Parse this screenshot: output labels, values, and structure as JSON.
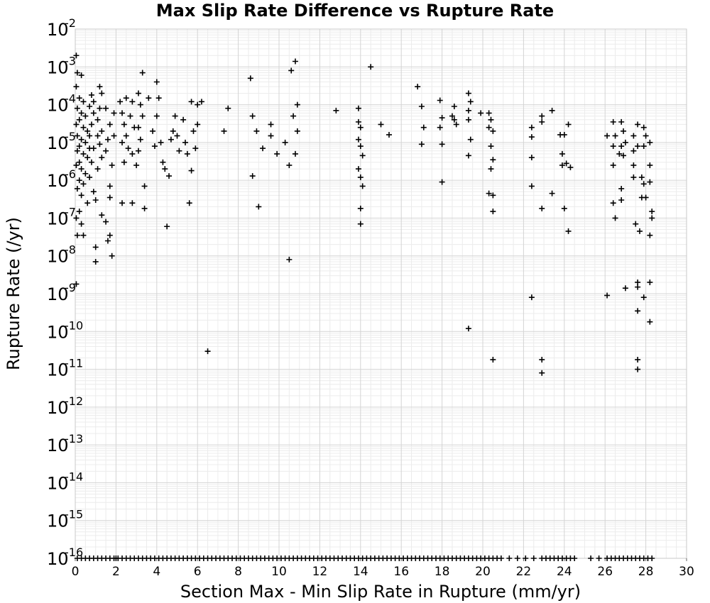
{
  "chart_data": {
    "type": "scatter",
    "title": "Max Slip Rate Difference vs Rupture Rate",
    "xlabel": "Section Max - Min Slip Rate in Rupture (mm/yr)",
    "ylabel": "Rupture Rate (/yr)",
    "xlim": [
      0,
      30
    ],
    "ylim": [
      1e-16,
      0.01
    ],
    "yscale": "log",
    "grid": true,
    "legend": "none",
    "marker": "plus",
    "marker_color": "#000000",
    "x_ticks": [
      "0",
      "2",
      "4",
      "6",
      "8",
      "10",
      "12",
      "14",
      "16",
      "18",
      "20",
      "22",
      "24",
      "26",
      "28",
      "30"
    ],
    "y_ticks": [
      {
        "base": "10",
        "exp": "-2"
      },
      {
        "base": "10",
        "exp": "-3"
      },
      {
        "base": "10",
        "exp": "-4"
      },
      {
        "base": "10",
        "exp": "-5"
      },
      {
        "base": "10",
        "exp": "-6"
      },
      {
        "base": "10",
        "exp": "-7"
      },
      {
        "base": "10",
        "exp": "-8"
      },
      {
        "base": "10",
        "exp": "-9"
      },
      {
        "base": "10",
        "exp": "-10"
      },
      {
        "base": "10",
        "exp": "-11"
      },
      {
        "base": "10",
        "exp": "-12"
      },
      {
        "base": "10",
        "exp": "-13"
      },
      {
        "base": "10",
        "exp": "-14"
      },
      {
        "base": "10",
        "exp": "-15"
      },
      {
        "base": "10",
        "exp": "-16"
      }
    ],
    "points": [
      [
        0.05,
        0.002
      ],
      [
        0.1,
        0.0007
      ],
      [
        0.3,
        0.0006
      ],
      [
        0.05,
        0.0003
      ],
      [
        0.2,
        0.00015
      ],
      [
        0.4,
        0.00012
      ],
      [
        0.1,
        8e-05
      ],
      [
        0.3,
        6e-05
      ],
      [
        0.5,
        5e-05
      ],
      [
        0.2,
        4e-05
      ],
      [
        0.05,
        3e-05
      ],
      [
        0.4,
        2.5e-05
      ],
      [
        0.6,
        2e-05
      ],
      [
        0.1,
        1.5e-05
      ],
      [
        0.3,
        1.2e-05
      ],
      [
        0.5,
        1e-05
      ],
      [
        0.2,
        8e-06
      ],
      [
        0.7,
        7e-06
      ],
      [
        0.1,
        6e-06
      ],
      [
        0.4,
        5e-06
      ],
      [
        0.6,
        4e-06
      ],
      [
        0.2,
        3e-06
      ],
      [
        0.05,
        2.5e-06
      ],
      [
        0.3,
        2e-06
      ],
      [
        0.5,
        1.5e-06
      ],
      [
        0.2,
        1e-06
      ],
      [
        0.4,
        8e-07
      ],
      [
        0.1,
        6e-07
      ],
      [
        0.3,
        4e-07
      ],
      [
        0.6,
        2.5e-07
      ],
      [
        0.2,
        1.5e-07
      ],
      [
        0.05,
        1e-07
      ],
      [
        0.3,
        7e-08
      ],
      [
        0.1,
        3.5e-08
      ],
      [
        0.4,
        3.5e-08
      ],
      [
        0.05,
        1.8e-09
      ],
      [
        0.8,
        0.00018
      ],
      [
        0.9,
        0.00012
      ],
      [
        0.7,
        9e-05
      ],
      [
        0.9,
        6e-05
      ],
      [
        0.8,
        3e-05
      ],
      [
        0.7,
        1.5e-05
      ],
      [
        0.9,
        7e-06
      ],
      [
        0.8,
        3e-06
      ],
      [
        0.7,
        1.2e-06
      ],
      [
        0.9,
        5e-07
      ],
      [
        1.0,
        1.7e-08
      ],
      [
        1.0,
        7e-09
      ],
      [
        1.0,
        3e-07
      ],
      [
        1.1,
        1.5e-05
      ],
      [
        1.2,
        0.0003
      ],
      [
        1.3,
        0.0002
      ],
      [
        1.2,
        8e-05
      ],
      [
        1.1,
        4e-05
      ],
      [
        1.3,
        2e-05
      ],
      [
        1.2,
        9e-06
      ],
      [
        1.3,
        4e-06
      ],
      [
        1.1,
        2e-06
      ],
      [
        1.3,
        1.2e-07
      ],
      [
        1.5,
        8e-08
      ],
      [
        1.6,
        2.5e-08
      ],
      [
        1.7,
        3.5e-08
      ],
      [
        1.8,
        1e-08
      ],
      [
        1.7,
        3.5e-07
      ],
      [
        1.5,
        8e-05
      ],
      [
        1.7,
        3e-05
      ],
      [
        1.6,
        1.2e-05
      ],
      [
        1.5,
        6e-06
      ],
      [
        1.8,
        2.5e-06
      ],
      [
        1.7,
        7e-07
      ],
      [
        1.9,
        1.5e-05
      ],
      [
        1.9,
        6e-05
      ],
      [
        2.2,
        0.00012
      ],
      [
        2.5,
        0.00015
      ],
      [
        2.8,
        0.00012
      ],
      [
        2.3,
        6e-05
      ],
      [
        2.7,
        5e-05
      ],
      [
        2.4,
        3e-05
      ],
      [
        2.9,
        2.5e-05
      ],
      [
        2.5,
        1.5e-05
      ],
      [
        2.3,
        1e-05
      ],
      [
        2.6,
        7e-06
      ],
      [
        2.8,
        5e-06
      ],
      [
        2.4,
        3e-06
      ],
      [
        2.3,
        2.5e-07
      ],
      [
        2.8,
        2.5e-07
      ],
      [
        3.0,
        2.5e-06
      ],
      [
        3.1,
        6e-06
      ],
      [
        3.2,
        1.2e-05
      ],
      [
        3.1,
        2.5e-05
      ],
      [
        3.3,
        5e-05
      ],
      [
        3.2,
        0.0001
      ],
      [
        3.3,
        0.0007
      ],
      [
        3.1,
        0.0002
      ],
      [
        3.4,
        1.8e-07
      ],
      [
        3.4,
        7e-07
      ],
      [
        3.6,
        0.00015
      ],
      [
        3.8,
        2e-05
      ],
      [
        3.9,
        8e-06
      ],
      [
        4.0,
        5e-05
      ],
      [
        4.0,
        0.0004
      ],
      [
        4.1,
        0.00015
      ],
      [
        4.2,
        1e-05
      ],
      [
        4.3,
        3e-06
      ],
      [
        4.4,
        2e-06
      ],
      [
        4.5,
        6e-08
      ],
      [
        4.6,
        1.3e-06
      ],
      [
        4.7,
        1.2e-05
      ],
      [
        4.8,
        2e-05
      ],
      [
        4.9,
        5e-05
      ],
      [
        5.0,
        1.5e-05
      ],
      [
        5.1,
        6e-06
      ],
      [
        5.3,
        4e-05
      ],
      [
        5.4,
        1e-05
      ],
      [
        5.5,
        5e-06
      ],
      [
        5.7,
        1.8e-06
      ],
      [
        5.6,
        2.5e-07
      ],
      [
        5.8,
        2e-05
      ],
      [
        5.9,
        7e-06
      ],
      [
        6.0,
        3e-05
      ],
      [
        6.2,
        0.00012
      ],
      [
        6.5,
        3e-11
      ],
      [
        5.7,
        0.00012
      ],
      [
        6.0,
        0.0001
      ],
      [
        7.3,
        2e-05
      ],
      [
        7.5,
        8e-05
      ],
      [
        8.6,
        0.0005
      ],
      [
        8.7,
        5e-05
      ],
      [
        8.9,
        2e-05
      ],
      [
        8.7,
        1.3e-06
      ],
      [
        9.0,
        2e-07
      ],
      [
        9.2,
        7e-06
      ],
      [
        9.6,
        1.5e-05
      ],
      [
        9.6,
        3e-05
      ],
      [
        9.9,
        5e-06
      ],
      [
        10.3,
        1e-05
      ],
      [
        10.6,
        0.0008
      ],
      [
        10.8,
        0.0014
      ],
      [
        10.9,
        0.0001
      ],
      [
        10.7,
        5e-05
      ],
      [
        10.9,
        2e-05
      ],
      [
        10.8,
        5e-06
      ],
      [
        10.5,
        2.5e-06
      ],
      [
        10.5,
        8e-09
      ],
      [
        12.8,
        7e-05
      ],
      [
        13.9,
        8e-05
      ],
      [
        13.9,
        3.5e-05
      ],
      [
        14.0,
        2.5e-05
      ],
      [
        13.9,
        1.2e-05
      ],
      [
        14.0,
        8e-06
      ],
      [
        14.1,
        4.5e-06
      ],
      [
        13.9,
        2e-06
      ],
      [
        14.0,
        1.2e-06
      ],
      [
        14.1,
        7e-07
      ],
      [
        14.0,
        1.8e-07
      ],
      [
        14.0,
        7e-08
      ],
      [
        14.5,
        0.001
      ],
      [
        15.0,
        3e-05
      ],
      [
        15.4,
        1.6e-05
      ],
      [
        16.8,
        0.0003
      ],
      [
        17.0,
        9e-05
      ],
      [
        17.1,
        2.5e-05
      ],
      [
        17.0,
        9e-06
      ],
      [
        17.9,
        0.00013
      ],
      [
        18.0,
        4.5e-05
      ],
      [
        17.9,
        2.5e-05
      ],
      [
        18.0,
        9e-06
      ],
      [
        18.0,
        9e-07
      ],
      [
        18.6,
        9e-05
      ],
      [
        18.5,
        5e-05
      ],
      [
        18.7,
        3e-05
      ],
      [
        18.6,
        4e-05
      ],
      [
        19.3,
        0.0002
      ],
      [
        19.4,
        0.00012
      ],
      [
        19.3,
        7e-05
      ],
      [
        19.3,
        4e-05
      ],
      [
        19.4,
        1.2e-05
      ],
      [
        19.3,
        4.5e-06
      ],
      [
        19.3,
        1.2e-10
      ],
      [
        19.9,
        6e-05
      ],
      [
        20.3,
        6e-05
      ],
      [
        20.4,
        4e-05
      ],
      [
        20.3,
        2.5e-05
      ],
      [
        20.5,
        2e-05
      ],
      [
        20.4,
        8e-06
      ],
      [
        20.5,
        3.5e-06
      ],
      [
        20.4,
        2e-06
      ],
      [
        20.3,
        4.5e-07
      ],
      [
        20.5,
        4e-07
      ],
      [
        20.5,
        1.5e-07
      ],
      [
        20.5,
        1.8e-11
      ],
      [
        22.4,
        2.5e-05
      ],
      [
        22.4,
        1.4e-05
      ],
      [
        22.4,
        4e-06
      ],
      [
        22.4,
        7e-07
      ],
      [
        22.4,
        8e-10
      ],
      [
        22.9,
        5e-05
      ],
      [
        22.9,
        3.5e-05
      ],
      [
        22.9,
        1.8e-07
      ],
      [
        22.9,
        1.8e-11
      ],
      [
        22.9,
        8e-12
      ],
      [
        23.4,
        7e-05
      ],
      [
        23.4,
        4.5e-07
      ],
      [
        23.8,
        1.6e-05
      ],
      [
        23.9,
        5e-06
      ],
      [
        23.9,
        2.5e-06
      ],
      [
        24.0,
        1.6e-05
      ],
      [
        24.2,
        3e-05
      ],
      [
        24.0,
        1.8e-07
      ],
      [
        24.2,
        4.5e-08
      ],
      [
        24.3,
        2.2e-06
      ],
      [
        24.1,
        2.8e-06
      ],
      [
        26.1,
        9e-10
      ],
      [
        26.1,
        1.5e-05
      ],
      [
        26.4,
        3.5e-05
      ],
      [
        26.5,
        1.5e-05
      ],
      [
        26.4,
        8e-06
      ],
      [
        26.4,
        2.5e-06
      ],
      [
        26.4,
        2.5e-07
      ],
      [
        26.5,
        1e-07
      ],
      [
        26.8,
        3.5e-05
      ],
      [
        26.9,
        2e-05
      ],
      [
        26.8,
        8e-06
      ],
      [
        26.9,
        4.5e-06
      ],
      [
        26.8,
        3e-07
      ],
      [
        26.8,
        6e-07
      ],
      [
        27.0,
        1.4e-09
      ],
      [
        27.4,
        1.5e-05
      ],
      [
        27.4,
        6e-06
      ],
      [
        27.4,
        2.5e-06
      ],
      [
        27.4,
        1.2e-06
      ],
      [
        27.5,
        7e-08
      ],
      [
        27.6,
        3e-05
      ],
      [
        27.6,
        8e-06
      ],
      [
        27.6,
        2e-09
      ],
      [
        27.6,
        1.5e-09
      ],
      [
        27.6,
        3.5e-10
      ],
      [
        27.6,
        1.8e-11
      ],
      [
        27.6,
        1e-11
      ],
      [
        27.7,
        4.5e-08
      ],
      [
        27.9,
        2.5e-05
      ],
      [
        27.9,
        8e-06
      ],
      [
        27.8,
        1.2e-06
      ],
      [
        27.9,
        8e-07
      ],
      [
        27.8,
        3.5e-07
      ],
      [
        27.9,
        8e-10
      ],
      [
        28.2,
        1e-05
      ],
      [
        28.2,
        2.5e-06
      ],
      [
        28.2,
        9e-07
      ],
      [
        28.3,
        1.5e-07
      ],
      [
        28.3,
        1e-07
      ],
      [
        28.2,
        3.5e-08
      ],
      [
        28.2,
        2e-09
      ],
      [
        28.2,
        1.8e-10
      ],
      [
        28.0,
        1.5e-05
      ],
      [
        28.0,
        3.5e-07
      ],
      [
        27.0,
        1e-05
      ],
      [
        26.7,
        5e-06
      ],
      [
        2.0,
        1e-16
      ]
    ],
    "floor_x": [
      0.1,
      0.3,
      0.5,
      0.7,
      0.9,
      1.1,
      1.3,
      1.5,
      1.7,
      1.9,
      2.1,
      2.3,
      2.5,
      2.7,
      2.9,
      3.1,
      3.3,
      3.5,
      3.7,
      3.9,
      4.1,
      4.3,
      4.5,
      4.7,
      4.9,
      5.1,
      5.3,
      5.5,
      5.7,
      5.9,
      6.1,
      6.3,
      6.5,
      6.7,
      6.9,
      7.1,
      7.3,
      7.5,
      7.7,
      7.9,
      8.1,
      8.3,
      8.5,
      8.7,
      8.9,
      9.1,
      9.3,
      9.5,
      9.7,
      9.9,
      10.1,
      10.3,
      10.5,
      10.7,
      10.9,
      11.1,
      11.3,
      11.5,
      11.7,
      11.9,
      12.1,
      12.3,
      12.5,
      12.7,
      12.9,
      13.1,
      13.3,
      13.5,
      13.7,
      13.9,
      14.1,
      14.3,
      14.5,
      14.7,
      14.9,
      15.1,
      15.3,
      15.5,
      15.7,
      15.9,
      16.1,
      16.3,
      16.5,
      16.7,
      16.9,
      17.1,
      17.3,
      17.5,
      17.7,
      17.9,
      18.1,
      18.3,
      18.5,
      18.7,
      18.9,
      19.1,
      19.3,
      19.5,
      19.7,
      19.9,
      20.1,
      20.3,
      20.5,
      20.7,
      20.9,
      21.3,
      21.7,
      22.1,
      22.5,
      22.9,
      23.1,
      23.3,
      23.5,
      23.7,
      23.9,
      24.1,
      24.3,
      24.5,
      25.3,
      25.7,
      26.1,
      26.3,
      26.5,
      26.7,
      26.9,
      27.1,
      27.3,
      27.5,
      27.7,
      27.9,
      28.1,
      28.3
    ]
  }
}
